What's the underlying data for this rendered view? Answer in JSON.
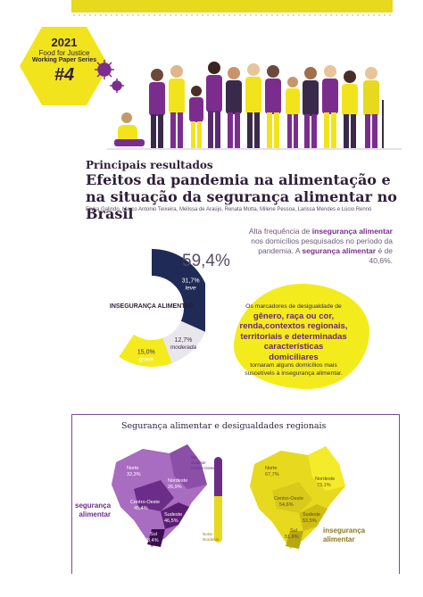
{
  "badge": {
    "year": "2021",
    "line1": "Food for Justice",
    "line2": "Working Paper Series",
    "number": "#4"
  },
  "header": {
    "subhead": "Principais resultados",
    "title": "Efeitos da pandemia na alimentação e na situação da segurança alimentar no Brasil",
    "authors": "Eryka  Galindo, Marco Antonio Teixeira, Melissa de Araújo, Renata Motta, Milene Pessoa, Larissa Mendes e Lúcio Rennó"
  },
  "chart_data": {
    "type": "pie",
    "center_label": "INSEGURANÇA ALIMENTAR",
    "total_label": "59,4%",
    "categories": [
      "leve",
      "moderada",
      "grave"
    ],
    "values": [
      31.7,
      12.7,
      15.0
    ],
    "value_labels": [
      "31,7%",
      "12,7%",
      "15,0%"
    ],
    "colors": [
      "#1f2a56",
      "#e9e7ec",
      "#f4eb1c"
    ]
  },
  "findings": {
    "alta_pre": "Alta frequência de ",
    "alta_bold1": "insegurança alimentar",
    "alta_mid": " nos domicílios pesquisados no período da pandemia. A ",
    "alta_bold2": "segurança alimentar",
    "alta_post": " é de 40,6%.",
    "marc_pre": "Os marcadores de desigualdade de",
    "marc_bold": "gênero, raça ou cor, renda,contextos regionais, territoriais e determinadas características domiciliares",
    "marc_post": "tornaram alguns domicílios mais suscetíveis à insegurança alimentar."
  },
  "regional": {
    "title": "Segurança alimentar e desigualdades regionais",
    "label_left": "segurança alimentar",
    "label_right": "insegurança alimentar",
    "left_map": [
      {
        "region": "Norte",
        "value": "32,3%"
      },
      {
        "region": "Nordeste",
        "value": "26,9%"
      },
      {
        "region": "Centro-Oeste",
        "value": "45,4%"
      },
      {
        "region": "Sudeste",
        "value": "46,5%"
      },
      {
        "region": "Sul",
        "value": "48,4%"
      }
    ],
    "right_map": [
      {
        "region": "Norte",
        "value": "67,7%"
      },
      {
        "region": "Nordeste",
        "value": "73,1%"
      },
      {
        "region": "Centro-Oeste",
        "value": "54,6%"
      },
      {
        "region": "Sudeste",
        "value": "53,5%"
      },
      {
        "region": "Sul",
        "value": "51,6%"
      }
    ],
    "legend_top": [
      "Sul",
      "Sudeste",
      "Centro-Oeste"
    ],
    "legend_bottom": [
      "Norte",
      "Nordeste"
    ],
    "bar_label_top": "segurança alimentar",
    "bar_label_bottom": "insegurança alimentar"
  }
}
